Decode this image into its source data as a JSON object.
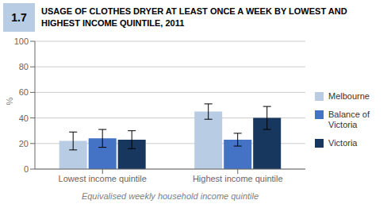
{
  "chart_data": {
    "type": "bar",
    "title": "USAGE OF CLOTHES DRYER AT LEAST ONCE A WEEK BY LOWEST AND\nHIGHEST INCOME QUINTILE, 2011",
    "annotations": [
      {
        "text": "1.7",
        "color": "#b8cce4"
      }
    ],
    "xlabel": "Equivalised weekly household income quintile",
    "ylabel": "%",
    "categories": [
      "Lowest income quintile",
      "Highest income quintile"
    ],
    "series": [
      {
        "name": "Melbourne",
        "color": "#b8cce4",
        "values": [
          22,
          45
        ],
        "errors": [
          7,
          6
        ]
      },
      {
        "name": "Balance of\nVictoria",
        "color": "#4472c4",
        "values": [
          24,
          23
        ],
        "errors": [
          7,
          5
        ]
      },
      {
        "name": "Victoria",
        "color": "#17375e",
        "values": [
          23,
          40
        ],
        "errors": [
          7,
          9
        ]
      }
    ],
    "ylim": [
      0,
      100
    ],
    "yticks": [
      0,
      20,
      40,
      60,
      80,
      100
    ],
    "grid": true,
    "legend": "right"
  }
}
